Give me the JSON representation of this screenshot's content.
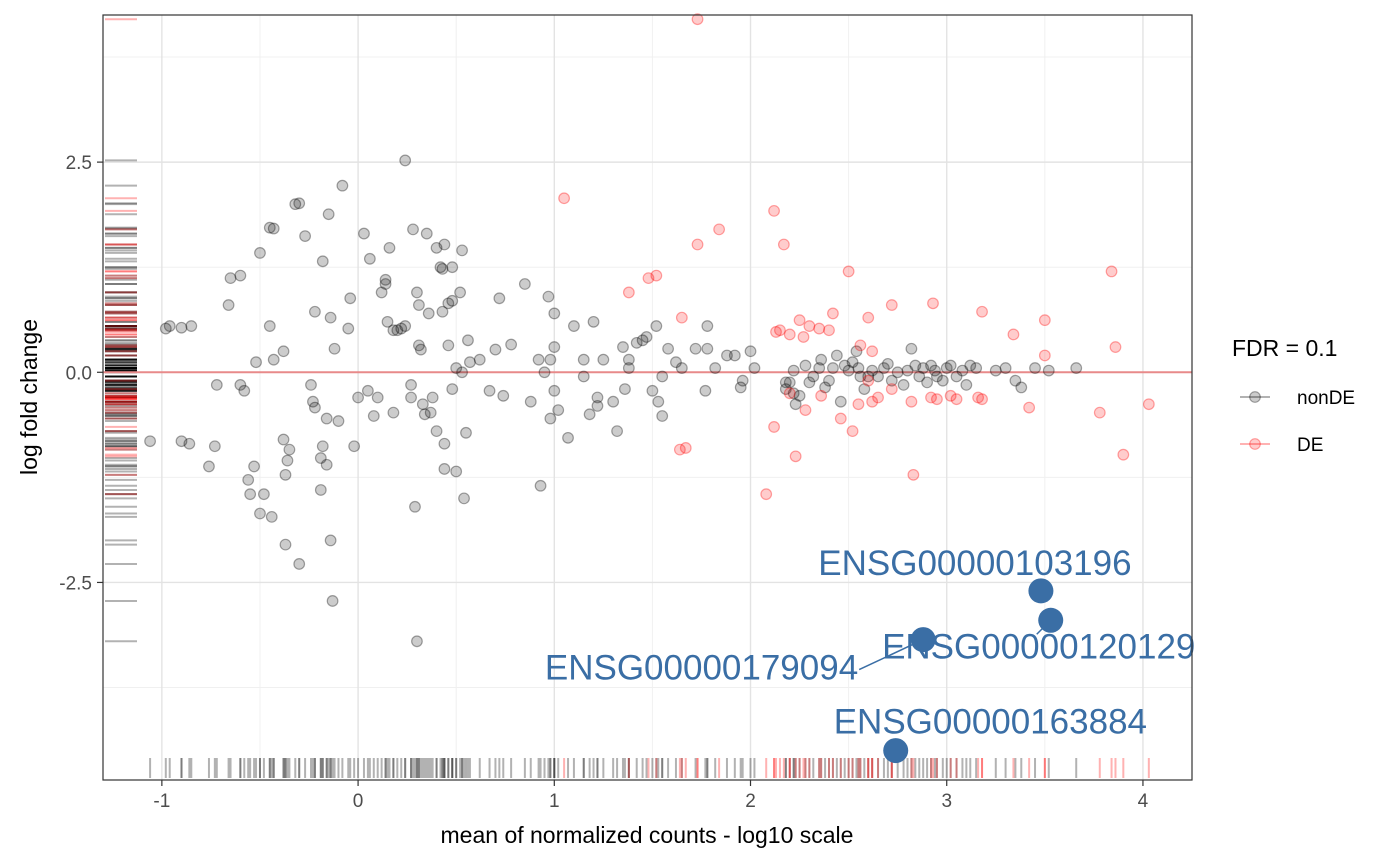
{
  "chart_data": {
    "type": "scatter",
    "xlabel": "mean of normalized counts - log10 scale",
    "ylabel": "log fold change",
    "xlim": [
      -1.3,
      4.25
    ],
    "ylim": [
      -4.85,
      4.25
    ],
    "x_ticks": [
      {
        "value": -1,
        "label": "-1"
      },
      {
        "value": 0,
        "label": "0"
      },
      {
        "value": 1,
        "label": "1"
      },
      {
        "value": 2,
        "label": "2"
      },
      {
        "value": 3,
        "label": "3"
      },
      {
        "value": 4,
        "label": "4"
      }
    ],
    "y_ticks": [
      {
        "value": 2.5,
        "label": "2.5"
      },
      {
        "value": 0.0,
        "label": "0.0"
      },
      {
        "value": -2.5,
        "label": "-2.5"
      }
    ],
    "reference_line": {
      "y": 0,
      "color": "#e88a8a"
    },
    "legend": {
      "title": "FDR = 0.1",
      "placement": "right",
      "entries": [
        {
          "label": "nonDE",
          "color": "#000000"
        },
        {
          "label": "DE",
          "color": "#ff0000"
        }
      ]
    },
    "series": [
      {
        "name": "nonDE",
        "color": "#000000",
        "points": [
          [
            -0.98,
            0.52
          ],
          [
            -0.65,
            1.12
          ],
          [
            -0.6,
            1.15
          ],
          [
            -0.66,
            0.8
          ],
          [
            -0.6,
            -0.15
          ],
          [
            -0.58,
            -0.22
          ],
          [
            -0.52,
            0.12
          ],
          [
            -0.5,
            1.42
          ],
          [
            -0.45,
            1.72
          ],
          [
            -0.43,
            1.71
          ],
          [
            -0.45,
            0.55
          ],
          [
            -0.43,
            0.15
          ],
          [
            -0.38,
            0.25
          ],
          [
            -0.35,
            -0.92
          ],
          [
            -0.38,
            -0.8
          ],
          [
            -0.36,
            -1.05
          ],
          [
            -0.37,
            -1.22
          ],
          [
            -0.48,
            -1.45
          ],
          [
            -0.53,
            -1.12
          ],
          [
            -0.56,
            -1.28
          ],
          [
            -0.55,
            -1.45
          ],
          [
            -0.5,
            -1.68
          ],
          [
            -0.44,
            -1.72
          ],
          [
            -0.37,
            -2.05
          ],
          [
            -0.3,
            -2.28
          ],
          [
            -0.32,
            2.0
          ],
          [
            -0.3,
            2.01
          ],
          [
            -0.27,
            1.62
          ],
          [
            -0.24,
            -0.15
          ],
          [
            -0.23,
            -0.35
          ],
          [
            -0.22,
            -0.42
          ],
          [
            -0.22,
            0.72
          ],
          [
            -0.18,
            1.32
          ],
          [
            -0.16,
            -0.55
          ],
          [
            -0.18,
            -0.88
          ],
          [
            -0.19,
            -1.02
          ],
          [
            -0.19,
            -1.4
          ],
          [
            -0.16,
            -1.1
          ],
          [
            -0.15,
            1.88
          ],
          [
            -0.14,
            0.65
          ],
          [
            -0.14,
            -2.0
          ],
          [
            -0.13,
            -2.72
          ],
          [
            -0.12,
            0.28
          ],
          [
            -0.1,
            -0.58
          ],
          [
            -0.08,
            2.22
          ],
          [
            -0.05,
            0.52
          ],
          [
            -0.04,
            0.88
          ],
          [
            -0.02,
            -0.88
          ],
          [
            0.0,
            -0.3
          ],
          [
            0.03,
            1.65
          ],
          [
            0.06,
            1.35
          ],
          [
            0.05,
            -0.22
          ],
          [
            0.08,
            -0.52
          ],
          [
            0.1,
            -0.3
          ],
          [
            0.12,
            0.95
          ],
          [
            0.14,
            1.05
          ],
          [
            0.14,
            1.1
          ],
          [
            0.15,
            0.6
          ],
          [
            0.16,
            1.48
          ],
          [
            0.18,
            0.5
          ],
          [
            0.18,
            -0.48
          ],
          [
            0.2,
            0.5
          ],
          [
            0.22,
            0.52
          ],
          [
            0.24,
            0.55
          ],
          [
            0.24,
            2.52
          ],
          [
            0.27,
            -0.15
          ],
          [
            0.27,
            -0.3
          ],
          [
            0.28,
            1.7
          ],
          [
            0.29,
            -1.6
          ],
          [
            0.3,
            0.95
          ],
          [
            0.31,
            0.32
          ],
          [
            0.31,
            0.8
          ],
          [
            0.32,
            0.27
          ],
          [
            0.33,
            -0.38
          ],
          [
            0.34,
            -0.5
          ],
          [
            0.35,
            1.65
          ],
          [
            0.36,
            0.7
          ],
          [
            0.37,
            -0.48
          ],
          [
            0.38,
            -0.3
          ],
          [
            0.4,
            -0.7
          ],
          [
            0.4,
            1.48
          ],
          [
            0.42,
            1.25
          ],
          [
            0.43,
            0.72
          ],
          [
            0.43,
            1.23
          ],
          [
            0.44,
            1.52
          ],
          [
            0.44,
            -0.85
          ],
          [
            0.44,
            -1.15
          ],
          [
            0.46,
            0.32
          ],
          [
            0.46,
            0.82
          ],
          [
            0.48,
            1.25
          ],
          [
            0.48,
            0.85
          ],
          [
            0.48,
            -0.2
          ],
          [
            0.5,
            0.05
          ],
          [
            0.5,
            -1.18
          ],
          [
            0.52,
            0.95
          ],
          [
            0.53,
            1.45
          ],
          [
            0.53,
            0.0
          ],
          [
            0.54,
            -1.5
          ],
          [
            0.55,
            -0.72
          ],
          [
            0.56,
            0.38
          ],
          [
            0.57,
            0.12
          ],
          [
            0.62,
            0.15
          ],
          [
            0.67,
            -0.22
          ],
          [
            0.7,
            0.27
          ],
          [
            0.72,
            0.88
          ],
          [
            0.74,
            -0.28
          ],
          [
            0.78,
            0.33
          ],
          [
            0.85,
            1.05
          ],
          [
            0.88,
            -0.35
          ],
          [
            0.92,
            0.15
          ],
          [
            0.93,
            -1.35
          ],
          [
            0.95,
            0.0
          ],
          [
            0.97,
            0.9
          ],
          [
            0.98,
            0.15
          ],
          [
            0.98,
            -0.55
          ],
          [
            1.0,
            -0.22
          ],
          [
            1.0,
            0.3
          ],
          [
            1.0,
            0.7
          ],
          [
            1.02,
            -0.45
          ],
          [
            1.07,
            -0.78
          ],
          [
            1.1,
            0.55
          ],
          [
            1.15,
            -0.05
          ],
          [
            1.15,
            0.15
          ],
          [
            1.18,
            -0.5
          ],
          [
            1.2,
            0.6
          ],
          [
            1.22,
            -0.3
          ],
          [
            1.22,
            -0.4
          ],
          [
            1.25,
            0.15
          ],
          [
            1.3,
            -0.35
          ],
          [
            1.32,
            -0.7
          ],
          [
            1.35,
            0.3
          ],
          [
            1.36,
            -0.2
          ],
          [
            1.38,
            0.15
          ],
          [
            1.38,
            0.05
          ],
          [
            1.42,
            0.35
          ],
          [
            1.45,
            0.38
          ],
          [
            1.47,
            0.42
          ],
          [
            1.5,
            -0.22
          ],
          [
            1.52,
            0.55
          ],
          [
            1.53,
            -0.35
          ],
          [
            1.55,
            -0.05
          ],
          [
            1.55,
            -0.52
          ],
          [
            1.58,
            0.28
          ],
          [
            1.62,
            0.12
          ],
          [
            1.65,
            0.05
          ],
          [
            1.72,
            0.28
          ],
          [
            1.77,
            -0.22
          ],
          [
            1.78,
            0.55
          ],
          [
            1.78,
            0.28
          ],
          [
            1.82,
            0.05
          ],
          [
            1.88,
            0.2
          ],
          [
            1.92,
            0.2
          ],
          [
            1.95,
            -0.18
          ],
          [
            1.96,
            -0.1
          ],
          [
            2.0,
            0.25
          ],
          [
            2.02,
            0.05
          ],
          [
            2.18,
            -0.12
          ],
          [
            2.18,
            -0.2
          ],
          [
            2.2,
            -0.12
          ],
          [
            2.22,
            -0.25
          ],
          [
            2.22,
            0.02
          ],
          [
            2.23,
            -0.38
          ],
          [
            2.25,
            -0.28
          ],
          [
            2.28,
            0.08
          ],
          [
            2.3,
            -0.12
          ],
          [
            2.32,
            -0.05
          ],
          [
            2.35,
            0.05
          ],
          [
            2.36,
            0.15
          ],
          [
            2.38,
            -0.18
          ],
          [
            2.4,
            -0.1
          ],
          [
            2.42,
            0.05
          ],
          [
            2.44,
            0.2
          ],
          [
            2.46,
            -0.35
          ],
          [
            2.48,
            0.08
          ],
          [
            2.5,
            0.02
          ],
          [
            2.52,
            0.12
          ],
          [
            2.54,
            0.25
          ],
          [
            2.55,
            0.05
          ],
          [
            2.56,
            -0.05
          ],
          [
            2.58,
            -0.2
          ],
          [
            2.6,
            -0.05
          ],
          [
            2.62,
            0.02
          ],
          [
            2.65,
            -0.05
          ],
          [
            2.68,
            0.05
          ],
          [
            2.7,
            0.1
          ],
          [
            2.72,
            -0.1
          ],
          [
            2.75,
            0.0
          ],
          [
            2.78,
            -0.15
          ],
          [
            2.8,
            0.02
          ],
          [
            2.82,
            0.28
          ],
          [
            2.84,
            0.08
          ],
          [
            2.86,
            -0.05
          ],
          [
            2.88,
            0.05
          ],
          [
            2.9,
            -0.12
          ],
          [
            2.92,
            0.08
          ],
          [
            2.94,
            0.02
          ],
          [
            2.95,
            -0.05
          ],
          [
            2.98,
            -0.1
          ],
          [
            3.0,
            0.05
          ],
          [
            3.02,
            0.08
          ],
          [
            3.05,
            -0.05
          ],
          [
            3.08,
            0.02
          ],
          [
            3.1,
            -0.15
          ],
          [
            3.12,
            0.08
          ],
          [
            3.15,
            0.05
          ],
          [
            3.25,
            0.02
          ],
          [
            3.3,
            0.05
          ],
          [
            3.35,
            -0.1
          ],
          [
            3.38,
            -0.18
          ],
          [
            3.45,
            0.05
          ],
          [
            3.52,
            0.02
          ],
          [
            3.66,
            0.05
          ],
          [
            0.3,
            -3.2
          ],
          [
            -0.85,
            0.55
          ],
          [
            -0.9,
            0.53
          ],
          [
            -0.96,
            0.55
          ],
          [
            -1.06,
            -0.82
          ],
          [
            -0.9,
            -0.82
          ],
          [
            -0.86,
            -0.85
          ],
          [
            -0.73,
            -0.88
          ],
          [
            -0.72,
            -0.15
          ],
          [
            -0.76,
            -1.12
          ]
        ]
      },
      {
        "name": "DE",
        "color": "#ff0000",
        "points": [
          [
            1.73,
            4.2
          ],
          [
            1.05,
            2.07
          ],
          [
            2.12,
            1.92
          ],
          [
            1.73,
            1.52
          ],
          [
            1.84,
            1.7
          ],
          [
            2.17,
            1.52
          ],
          [
            1.52,
            1.15
          ],
          [
            1.48,
            1.12
          ],
          [
            2.5,
            1.2
          ],
          [
            1.38,
            0.95
          ],
          [
            1.65,
            0.65
          ],
          [
            2.13,
            0.48
          ],
          [
            2.15,
            0.5
          ],
          [
            2.2,
            0.45
          ],
          [
            2.25,
            0.62
          ],
          [
            2.27,
            0.42
          ],
          [
            2.3,
            0.55
          ],
          [
            2.35,
            0.52
          ],
          [
            2.4,
            0.5
          ],
          [
            2.42,
            0.7
          ],
          [
            2.6,
            0.65
          ],
          [
            2.72,
            0.8
          ],
          [
            2.93,
            0.82
          ],
          [
            3.18,
            0.72
          ],
          [
            3.34,
            0.45
          ],
          [
            3.5,
            0.62
          ],
          [
            3.5,
            0.2
          ],
          [
            3.84,
            1.2
          ],
          [
            3.86,
            0.3
          ],
          [
            2.56,
            0.32
          ],
          [
            2.62,
            0.25
          ],
          [
            2.6,
            -0.1
          ],
          [
            2.62,
            -0.35
          ],
          [
            2.65,
            -0.3
          ],
          [
            2.2,
            -0.25
          ],
          [
            2.28,
            -0.45
          ],
          [
            2.36,
            -0.28
          ],
          [
            2.46,
            -0.55
          ],
          [
            2.52,
            -0.7
          ],
          [
            2.55,
            -0.38
          ],
          [
            2.72,
            -0.2
          ],
          [
            2.82,
            -0.35
          ],
          [
            2.83,
            -1.22
          ],
          [
            2.92,
            -0.3
          ],
          [
            2.95,
            -0.32
          ],
          [
            3.02,
            -0.28
          ],
          [
            3.05,
            -0.32
          ],
          [
            3.16,
            -0.3
          ],
          [
            3.18,
            -0.32
          ],
          [
            3.42,
            -0.42
          ],
          [
            3.78,
            -0.48
          ],
          [
            3.9,
            -0.98
          ],
          [
            4.03,
            -0.38
          ],
          [
            2.23,
            -1.0
          ],
          [
            2.12,
            -0.65
          ],
          [
            2.08,
            -1.45
          ],
          [
            1.64,
            -0.92
          ],
          [
            1.67,
            -0.9
          ]
        ]
      },
      {
        "name": "",
        "color": "#3a6ea5",
        "points": [
          [
            3.48,
            -2.6
          ],
          [
            3.53,
            -2.95
          ],
          [
            2.88,
            -3.18
          ],
          [
            2.74,
            -4.5
          ]
        ]
      }
    ],
    "labels": [
      {
        "text": "ENSG00000103196",
        "x": 3.48,
        "y": -2.6
      },
      {
        "text": "ENSG00000120129",
        "x": 3.53,
        "y": -2.95
      },
      {
        "text": "ENSG00000179094",
        "x": 2.88,
        "y": -3.18
      },
      {
        "text": "ENSG00000163884",
        "x": 2.74,
        "y": -4.5
      }
    ],
    "grid": true
  }
}
